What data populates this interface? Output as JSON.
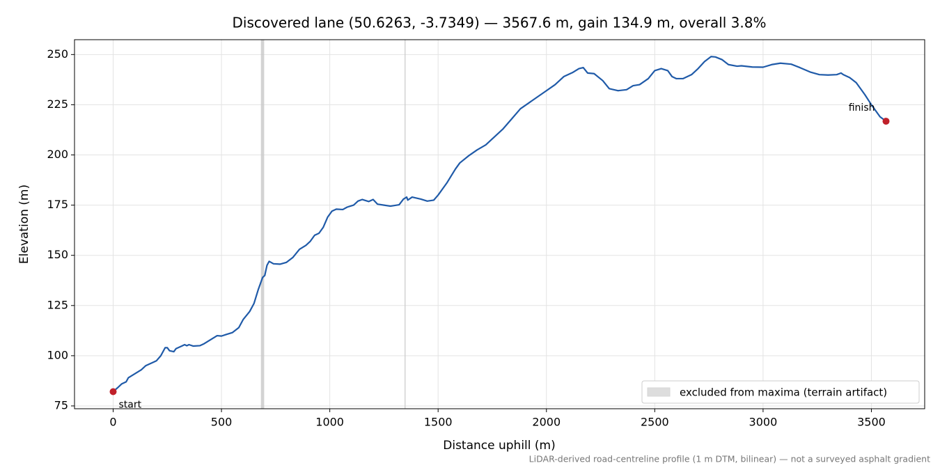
{
  "chart_data": {
    "type": "line",
    "title": "Discovered lane (50.6263, -3.7349) — 3567.6 m, gain 134.9 m, overall 3.8%",
    "xlabel": "Distance uphill (m)",
    "ylabel": "Elevation (m)",
    "note": "LiDAR-derived road-centreline profile (1 m DTM, bilinear) — not a surveyed asphalt gradient",
    "start_label": "start",
    "finish_label": "finish",
    "color": "#1f5aa8",
    "endpoint_color": "#c0202a",
    "excluded": {
      "name": "excluded from maxima (terrain artifact)",
      "color": "#c8c8c8",
      "spans": [
        [
          682,
          697
        ],
        [
          1345,
          1349
        ]
      ]
    },
    "legend": "lower right",
    "grid": true,
    "xlim": [
      -178.4,
      3746
    ],
    "ylim": [
      73.6,
      257.4
    ],
    "xticks": [
      0,
      500,
      1000,
      1500,
      2000,
      2500,
      3000,
      3500
    ],
    "yticks": [
      75,
      100,
      125,
      150,
      175,
      200,
      225,
      250
    ],
    "x": [
      0,
      20,
      40,
      60,
      70,
      100,
      130,
      150,
      180,
      200,
      220,
      240,
      250,
      260,
      280,
      290,
      320,
      330,
      340,
      350,
      370,
      400,
      420,
      450,
      480,
      500,
      520,
      550,
      580,
      600,
      630,
      650,
      670,
      690,
      700,
      710,
      720,
      740,
      770,
      800,
      830,
      860,
      890,
      910,
      930,
      950,
      970,
      990,
      1010,
      1030,
      1060,
      1080,
      1110,
      1130,
      1150,
      1180,
      1200,
      1220,
      1250,
      1280,
      1320,
      1340,
      1355,
      1360,
      1380,
      1420,
      1450,
      1480,
      1500,
      1540,
      1580,
      1600,
      1640,
      1680,
      1720,
      1760,
      1800,
      1840,
      1880,
      1920,
      1960,
      2000,
      2040,
      2080,
      2120,
      2150,
      2170,
      2190,
      2220,
      2260,
      2290,
      2330,
      2370,
      2400,
      2430,
      2470,
      2500,
      2530,
      2560,
      2580,
      2600,
      2630,
      2670,
      2700,
      2730,
      2760,
      2780,
      2810,
      2840,
      2880,
      2900,
      2950,
      3000,
      3040,
      3080,
      3130,
      3170,
      3220,
      3260,
      3300,
      3340,
      3360,
      3370,
      3400,
      3430,
      3470,
      3500,
      3540,
      3567.6
    ],
    "values": [
      82.1,
      84,
      86,
      87,
      89,
      91,
      93,
      95,
      96.5,
      97.5,
      100,
      104,
      104,
      102.5,
      102,
      103.5,
      105,
      105.5,
      105,
      105.5,
      104.8,
      105,
      106,
      108,
      110,
      109.8,
      110.5,
      111.5,
      114,
      118,
      122,
      126,
      133,
      139,
      140,
      145,
      147,
      145.8,
      145.6,
      146.5,
      149,
      153,
      155,
      157,
      160,
      161,
      164,
      169,
      172,
      173,
      172.8,
      174,
      175,
      177,
      177.8,
      176.8,
      177.8,
      175.5,
      175,
      174.5,
      175.2,
      178,
      179,
      177.5,
      179,
      178,
      177,
      177.5,
      180,
      186,
      193,
      196,
      199.5,
      202.5,
      205,
      209,
      213,
      218,
      223,
      226,
      229,
      232,
      235,
      239,
      241,
      243,
      243.5,
      240.8,
      240.5,
      237,
      233,
      232,
      232.5,
      234.5,
      235,
      238,
      242,
      243,
      242,
      239,
      238,
      238,
      240,
      243,
      246.5,
      249,
      248.8,
      247.5,
      245,
      244.2,
      244.4,
      243.8,
      243.7,
      245,
      245.7,
      245.2,
      243.5,
      241.2,
      240,
      239.8,
      240,
      240.8,
      240,
      238.5,
      236,
      230,
      225,
      219,
      216.8
    ]
  }
}
